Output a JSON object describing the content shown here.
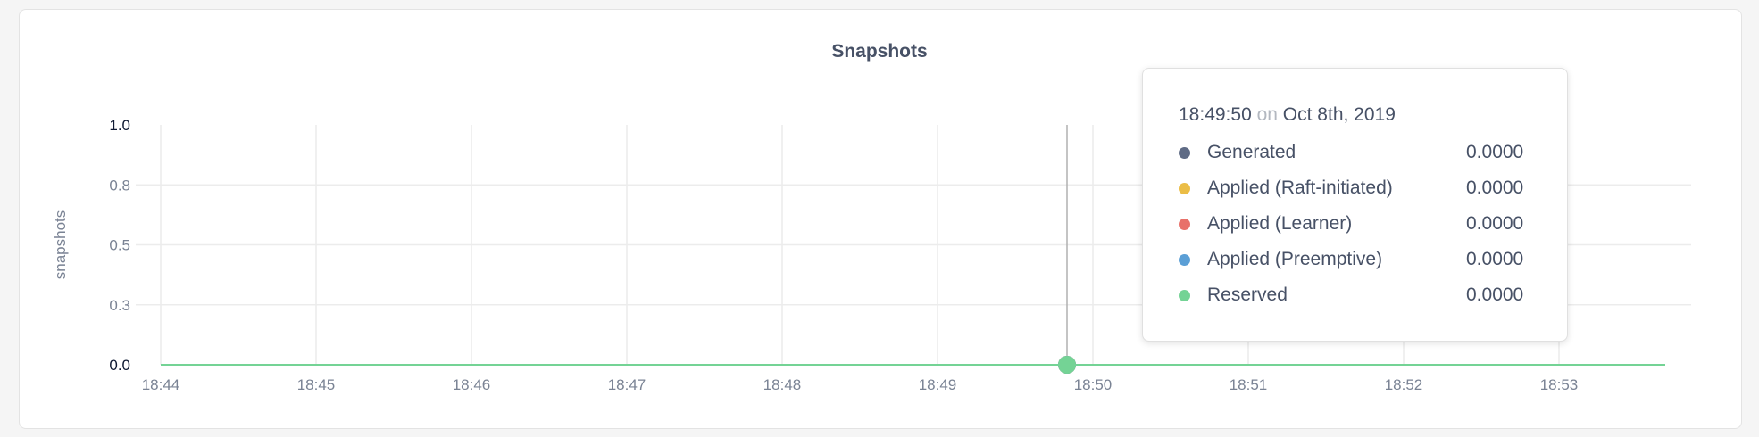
{
  "chart_data": {
    "type": "line",
    "title": "Snapshots",
    "ylabel": "snapshots",
    "xlabel": "",
    "ylim": [
      0,
      1
    ],
    "y_ticks": [
      {
        "value": 1.0,
        "label": "1.0"
      },
      {
        "value": 0.75,
        "label": "0.8"
      },
      {
        "value": 0.5,
        "label": "0.5"
      },
      {
        "value": 0.25,
        "label": "0.3"
      },
      {
        "value": 0.0,
        "label": "0.0"
      }
    ],
    "x_ticks": [
      "18:44",
      "18:45",
      "18:46",
      "18:47",
      "18:48",
      "18:49",
      "18:50",
      "18:51",
      "18:52",
      "18:53"
    ],
    "x_range": [
      "18:44",
      "18:53:40"
    ],
    "grid": true,
    "series": [
      {
        "name": "Generated",
        "color": "#5f6b85",
        "values": [
          0
        ]
      },
      {
        "name": "Applied (Raft-initiated)",
        "color": "#ebbd46",
        "values": [
          0
        ]
      },
      {
        "name": "Applied (Learner)",
        "color": "#e8716a",
        "values": [
          0
        ]
      },
      {
        "name": "Applied (Preemptive)",
        "color": "#5b9fd6",
        "values": [
          0
        ]
      },
      {
        "name": "Reserved",
        "color": "#74d395",
        "values": [
          0
        ]
      }
    ],
    "hover": {
      "x": "18:49:50",
      "time": "18:49:50",
      "on": "on",
      "date": "Oct 8th, 2019",
      "values": [
        "0.0000",
        "0.0000",
        "0.0000",
        "0.0000",
        "0.0000"
      ]
    }
  }
}
